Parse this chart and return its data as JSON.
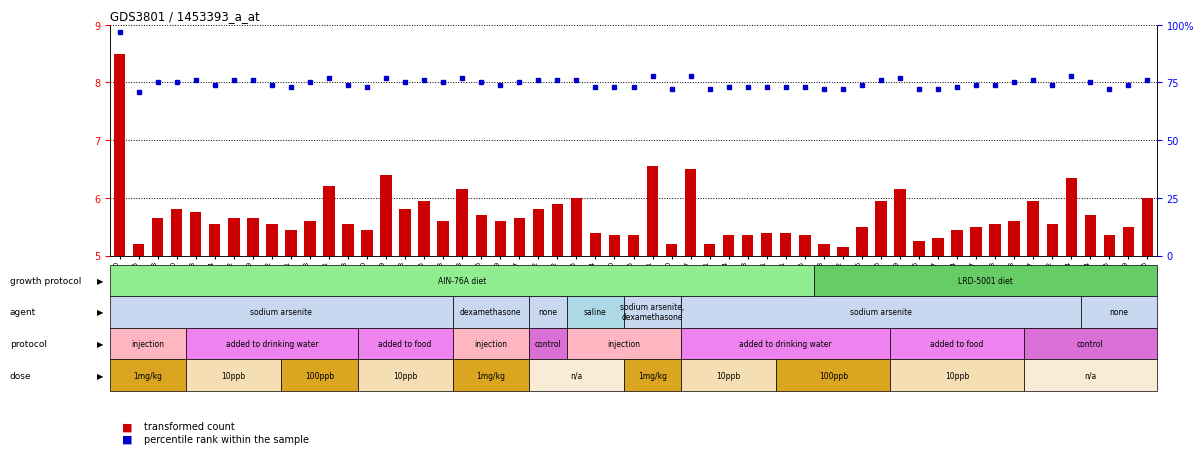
{
  "title": "GDS3801 / 1453393_a_at",
  "samples": [
    "GSM279240",
    "GSM279245",
    "GSM279248",
    "GSM279250",
    "GSM279253",
    "GSM279234",
    "GSM279262",
    "GSM279269",
    "GSM279272",
    "GSM279231",
    "GSM279243",
    "GSM279261",
    "GSM279263",
    "GSM279230",
    "GSM279249",
    "GSM279258",
    "GSM279265",
    "GSM279273",
    "GSM279233",
    "GSM279236",
    "GSM279239",
    "GSM279247",
    "GSM279252",
    "GSM279232",
    "GSM279235",
    "GSM279264",
    "GSM279270",
    "GSM279275",
    "GSM279221",
    "GSM279260",
    "GSM279267",
    "GSM279271",
    "GSM279274",
    "GSM279238",
    "GSM279241",
    "GSM279251",
    "GSM279255",
    "GSM279268",
    "GSM279222",
    "GSM279226",
    "GSM279246",
    "GSM279259",
    "GSM279266",
    "GSM279227",
    "GSM279254",
    "GSM279257",
    "GSM279223",
    "GSM279228",
    "GSM279237",
    "GSM279242",
    "GSM279244",
    "GSM279224",
    "GSM279225",
    "GSM279229",
    "GSM279256"
  ],
  "bar_values": [
    8.5,
    5.2,
    5.65,
    5.8,
    5.75,
    5.55,
    5.65,
    5.65,
    5.55,
    5.45,
    5.6,
    6.2,
    5.55,
    5.45,
    6.4,
    5.8,
    5.95,
    5.6,
    6.15,
    5.7,
    5.6,
    5.65,
    5.8,
    5.9,
    6.0,
    5.4,
    5.35,
    5.35,
    6.55,
    5.2,
    6.5,
    5.2,
    5.35,
    5.35,
    5.4,
    5.4,
    5.35,
    5.2,
    5.15,
    5.5,
    5.95,
    6.15,
    5.25,
    5.3,
    5.45,
    5.5,
    5.55,
    5.6,
    5.95,
    5.55,
    6.35,
    5.7,
    5.35,
    5.5,
    6.0
  ],
  "dot_values": [
    97,
    71,
    75,
    75,
    76,
    74,
    76,
    76,
    74,
    73,
    75,
    77,
    74,
    73,
    77,
    75,
    76,
    75,
    77,
    75,
    74,
    75,
    76,
    76,
    76,
    73,
    73,
    73,
    78,
    72,
    78,
    72,
    73,
    73,
    73,
    73,
    73,
    72,
    72,
    74,
    76,
    77,
    72,
    72,
    73,
    74,
    74,
    75,
    76,
    74,
    78,
    75,
    72,
    74,
    76
  ],
  "ylim_left": [
    5.0,
    9.0
  ],
  "ylim_right": [
    0,
    100
  ],
  "yticks_left": [
    5,
    6,
    7,
    8,
    9
  ],
  "yticks_right": [
    0,
    25,
    50,
    75,
    100
  ],
  "ytick_right_labels": [
    "0",
    "25",
    "50",
    "75",
    "100%"
  ],
  "bar_color": "#cc0000",
  "dot_color": "#0000cc",
  "annotation_rows": [
    {
      "label": "growth protocol",
      "segments": [
        {
          "text": "AIN-76A diet",
          "start": 0,
          "end": 37,
          "color": "#90ee90"
        },
        {
          "text": "LRD-5001 diet",
          "start": 37,
          "end": 55,
          "color": "#66cc66"
        }
      ]
    },
    {
      "label": "agent",
      "segments": [
        {
          "text": "sodium arsenite",
          "start": 0,
          "end": 18,
          "color": "#c8d8f0"
        },
        {
          "text": "dexamethasone",
          "start": 18,
          "end": 22,
          "color": "#c8d8f0"
        },
        {
          "text": "none",
          "start": 22,
          "end": 24,
          "color": "#c8d8f0"
        },
        {
          "text": "saline",
          "start": 24,
          "end": 27,
          "color": "#add8e6"
        },
        {
          "text": "sodium arsenite,\ndexamethasone",
          "start": 27,
          "end": 30,
          "color": "#c8d8f0"
        },
        {
          "text": "sodium arsenite",
          "start": 30,
          "end": 51,
          "color": "#c8d8f0"
        },
        {
          "text": "none",
          "start": 51,
          "end": 55,
          "color": "#c8d8f0"
        }
      ]
    },
    {
      "label": "protocol",
      "segments": [
        {
          "text": "injection",
          "start": 0,
          "end": 4,
          "color": "#ffb6c1"
        },
        {
          "text": "added to drinking water",
          "start": 4,
          "end": 13,
          "color": "#ee82ee"
        },
        {
          "text": "added to food",
          "start": 13,
          "end": 18,
          "color": "#ee82ee"
        },
        {
          "text": "injection",
          "start": 18,
          "end": 22,
          "color": "#ffb6c1"
        },
        {
          "text": "control",
          "start": 22,
          "end": 24,
          "color": "#da70d6"
        },
        {
          "text": "injection",
          "start": 24,
          "end": 30,
          "color": "#ffb6c1"
        },
        {
          "text": "added to drinking water",
          "start": 30,
          "end": 41,
          "color": "#ee82ee"
        },
        {
          "text": "added to food",
          "start": 41,
          "end": 48,
          "color": "#ee82ee"
        },
        {
          "text": "control",
          "start": 48,
          "end": 55,
          "color": "#da70d6"
        }
      ]
    },
    {
      "label": "dose",
      "segments": [
        {
          "text": "1mg/kg",
          "start": 0,
          "end": 4,
          "color": "#daa520"
        },
        {
          "text": "10ppb",
          "start": 4,
          "end": 9,
          "color": "#f5deb3"
        },
        {
          "text": "100ppb",
          "start": 9,
          "end": 13,
          "color": "#daa520"
        },
        {
          "text": "10ppb",
          "start": 13,
          "end": 18,
          "color": "#f5deb3"
        },
        {
          "text": "1mg/kg",
          "start": 18,
          "end": 22,
          "color": "#daa520"
        },
        {
          "text": "n/a",
          "start": 22,
          "end": 27,
          "color": "#faebd7"
        },
        {
          "text": "1mg/kg",
          "start": 27,
          "end": 30,
          "color": "#daa520"
        },
        {
          "text": "10ppb",
          "start": 30,
          "end": 35,
          "color": "#f5deb3"
        },
        {
          "text": "100ppb",
          "start": 35,
          "end": 41,
          "color": "#daa520"
        },
        {
          "text": "10ppb",
          "start": 41,
          "end": 48,
          "color": "#f5deb3"
        },
        {
          "text": "n/a",
          "start": 48,
          "end": 55,
          "color": "#faebd7"
        }
      ]
    }
  ],
  "legend_items": [
    {
      "label": "transformed count",
      "color": "#cc0000"
    },
    {
      "label": "percentile rank within the sample",
      "color": "#0000cc"
    }
  ]
}
